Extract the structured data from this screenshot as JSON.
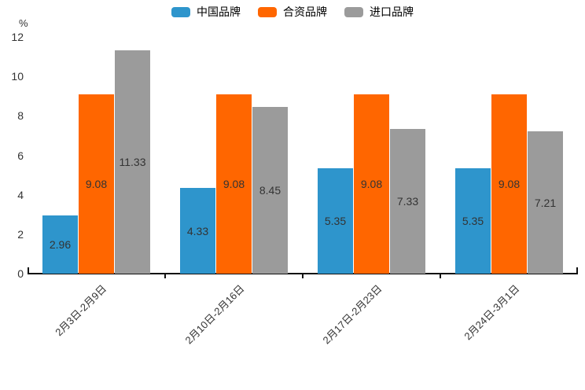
{
  "chart_data": {
    "type": "bar",
    "title": "",
    "unit_label": "%",
    "categories": [
      "2月3日-2月9日",
      "2月10日-2月16日",
      "2月17日-2月23日",
      "2月24日-3月1日"
    ],
    "series": [
      {
        "name": "中国品牌",
        "color": "#2E95CC",
        "values": [
          2.96,
          4.33,
          5.35,
          5.35
        ]
      },
      {
        "name": "合资品牌",
        "color": "#FF6600",
        "values": [
          9.08,
          9.08,
          9.08,
          9.08
        ]
      },
      {
        "name": "进口品牌",
        "color": "#9B9B9B",
        "values": [
          11.33,
          8.45,
          7.33,
          7.21
        ]
      }
    ],
    "ylim": [
      0,
      12
    ],
    "yticks": [
      0,
      2,
      4,
      6,
      8,
      10,
      12
    ],
    "legend_position": "top",
    "grid": false,
    "value_labels": true,
    "value_label_color": "#333333",
    "axis_color": "#111111"
  }
}
